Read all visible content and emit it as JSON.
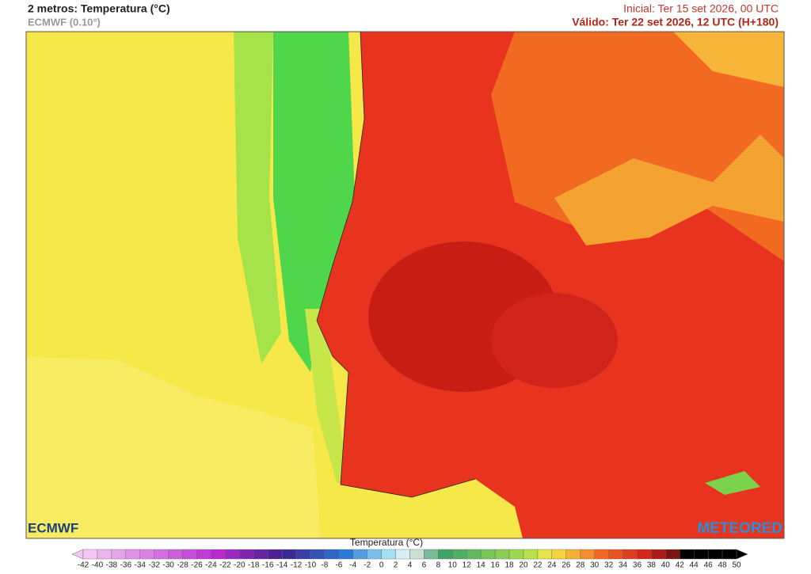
{
  "header": {
    "title": "2 metros: Temperatura (°C)",
    "model": "ECMWF (0.10°)",
    "initial": "Inicial: Ter 15 set 2026, 00 UTC",
    "valid": "Válido: Ter 22 set 2026, 12 UTC (H+180)"
  },
  "logos": {
    "left": "ECMWF",
    "right": "METEORED"
  },
  "legend": {
    "title": "Temperatura (°C)",
    "labels": [
      -42,
      -40,
      -38,
      -36,
      -34,
      -32,
      -30,
      -28,
      -26,
      -24,
      -22,
      -20,
      -18,
      -16,
      -14,
      -12,
      -10,
      -8,
      -6,
      -4,
      -2,
      0,
      2,
      4,
      6,
      8,
      10,
      12,
      14,
      16,
      18,
      20,
      22,
      24,
      26,
      28,
      30,
      32,
      34,
      36,
      38,
      40,
      42,
      44,
      46,
      48,
      50
    ]
  }
}
